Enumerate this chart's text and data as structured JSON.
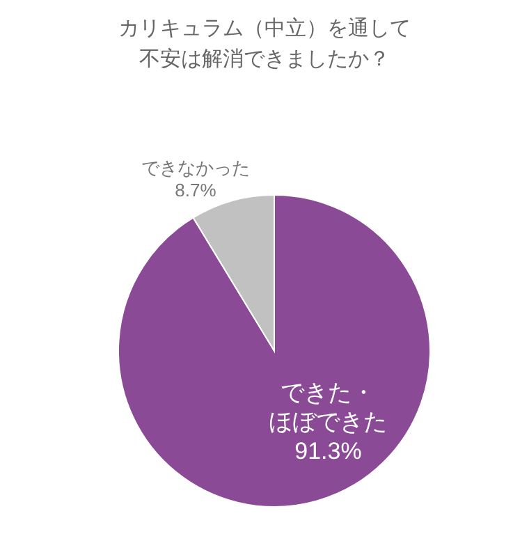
{
  "chart_data": {
    "type": "pie",
    "title": "カリキュラム（中立）を通して不安は解消できましたか？",
    "categories": [
      "できた・ほぼできた",
      "できなかった"
    ],
    "values": [
      91.3,
      8.7
    ],
    "colors": [
      "#8b4a96",
      "#c0c1c0"
    ],
    "value_labels": [
      "91.3%",
      "8.7%"
    ]
  }
}
